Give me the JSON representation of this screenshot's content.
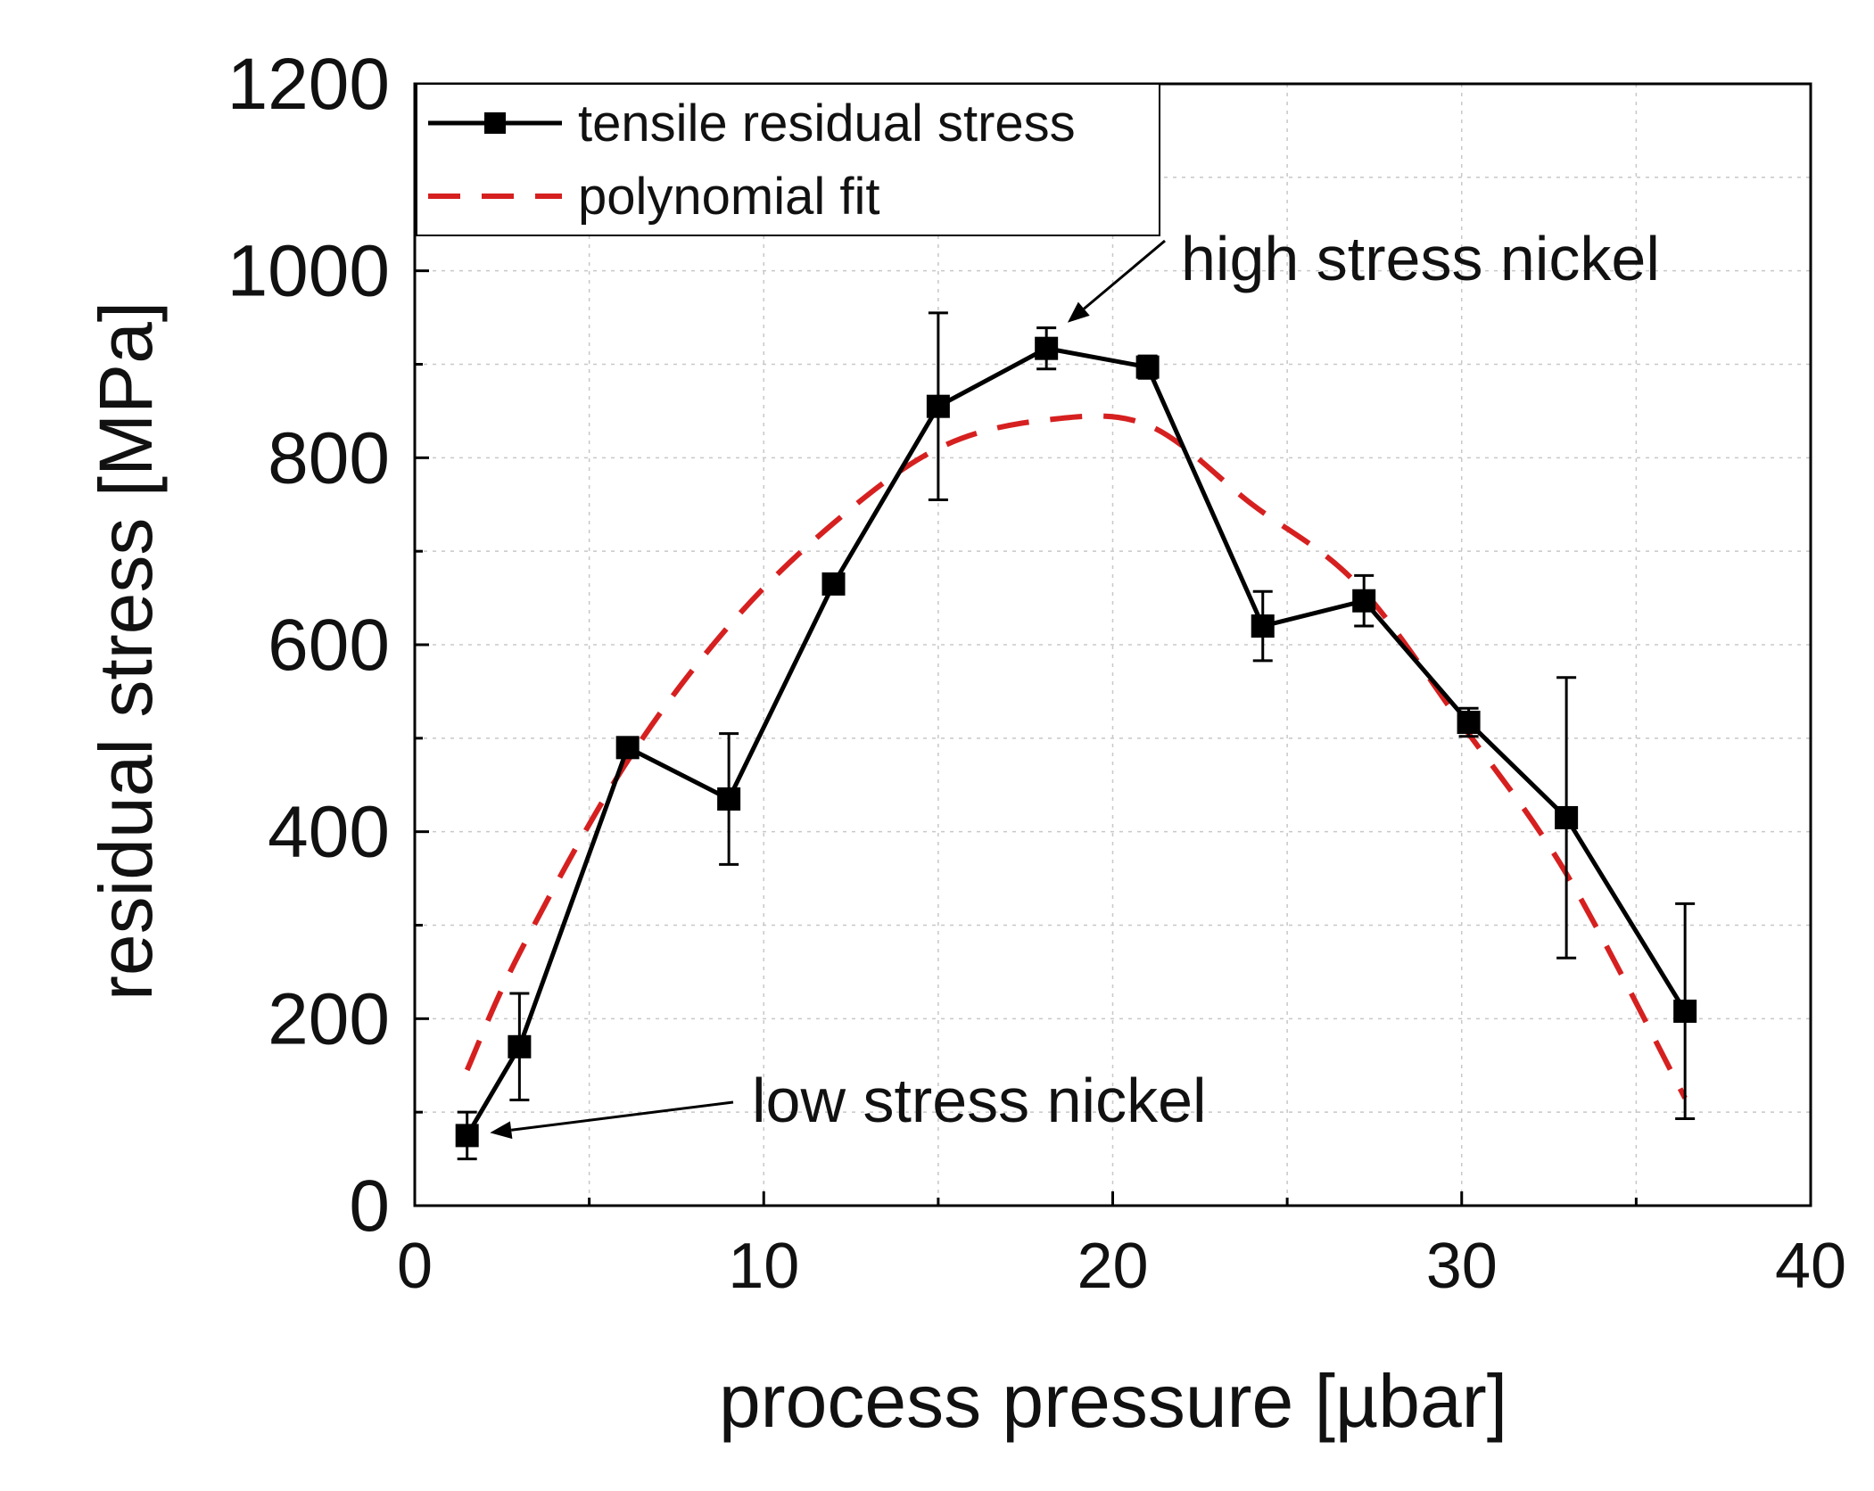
{
  "chart_data": {
    "type": "line",
    "xlabel": "process pressure [µbar]",
    "ylabel": "residual stress [MPa]",
    "xlim": [
      0,
      40
    ],
    "ylim": [
      0,
      1200
    ],
    "x_ticks": [
      0,
      10,
      20,
      30,
      40
    ],
    "y_ticks": [
      0,
      200,
      400,
      600,
      800,
      1000,
      1200
    ],
    "x_tick_labels": [
      "0",
      "10",
      "20",
      "30",
      "40"
    ],
    "y_tick_labels": [
      "0",
      "200",
      "400",
      "600",
      "800",
      "1000",
      "1200"
    ],
    "grid": true,
    "legend_position": "top-left",
    "series": [
      {
        "name": "tensile residual stress",
        "style": "solid-square-markers",
        "color": "#000000",
        "x": [
          1.5,
          3.0,
          6.1,
          9.0,
          12.0,
          15.0,
          18.1,
          21.0,
          24.3,
          27.2,
          30.2,
          33.0,
          36.4
        ],
        "y": [
          75,
          170,
          490,
          435,
          665,
          855,
          917,
          897,
          620,
          647,
          517,
          415,
          208
        ],
        "err": [
          25,
          57,
          10,
          70,
          10,
          100,
          22,
          12,
          37,
          27,
          15,
          150,
          115
        ]
      },
      {
        "name": "polynomial fit",
        "style": "dashed",
        "color": "#d62020",
        "x": [
          1.5,
          3,
          6,
          9,
          12,
          15,
          18,
          21,
          24,
          27,
          30,
          33,
          36.4
        ],
        "y": [
          145,
          270,
          470,
          620,
          730,
          810,
          840,
          835,
          750,
          665,
          515,
          355,
          115
        ]
      }
    ],
    "annotations": [
      {
        "text": "high stress nickel",
        "points_to": [
          18.4,
          937
        ]
      },
      {
        "text": "low stress nickel",
        "points_to": [
          1.9,
          78
        ]
      }
    ]
  }
}
